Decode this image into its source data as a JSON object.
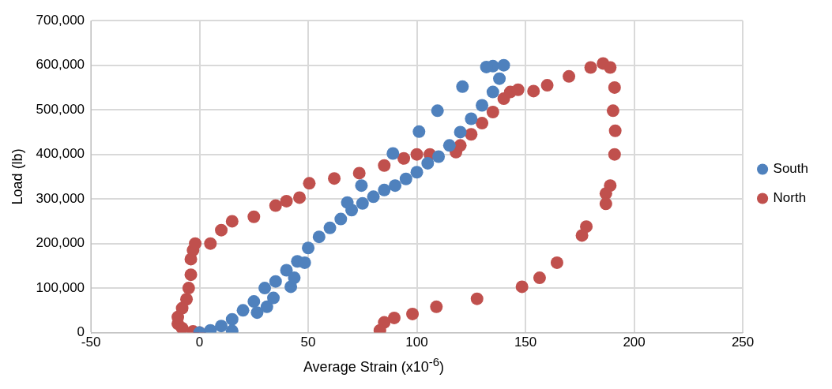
{
  "chart_data": {
    "type": "scatter",
    "xlabel": "Average Strain (x10$^{-6}$)",
    "ylabel": "Load (lb)",
    "xlim": [
      -50,
      250
    ],
    "xticks": [
      -50,
      0,
      50,
      100,
      150,
      200,
      250
    ],
    "ylim": [
      0,
      700000
    ],
    "yticks": [
      {
        "value": 0,
        "label": "0"
      },
      {
        "value": 100000,
        "label": "100,000"
      },
      {
        "value": 200000,
        "label": "200,000"
      },
      {
        "value": 300000,
        "label": "300,000"
      },
      {
        "value": 400000,
        "label": "400,000"
      },
      {
        "value": 500000,
        "label": "500,000"
      },
      {
        "value": 600000,
        "label": "600,000"
      },
      {
        "value": 700000,
        "label": "700,000"
      }
    ],
    "grid": true,
    "legend": "right",
    "marker": "circle",
    "series": [
      {
        "name": "South",
        "color": "#4f81bd",
        "x": [
          0,
          5,
          10,
          15,
          20,
          25,
          30,
          35,
          40,
          45,
          50,
          55,
          60,
          65,
          70,
          75,
          80,
          85,
          90,
          95,
          100,
          105,
          110,
          115,
          120,
          125,
          130,
          135,
          138,
          140,
          135,
          132,
          15,
          26.5,
          31,
          34,
          42,
          43.6,
          48.4,
          68,
          74.5,
          89,
          101,
          109.5,
          121
        ],
        "values": [
          0,
          5000,
          15000,
          30000,
          50000,
          70000,
          100000,
          115000,
          140000,
          160000,
          190000,
          215000,
          235000,
          255000,
          275000,
          290000,
          305000,
          320000,
          330000,
          345000,
          360000,
          380000,
          395000,
          420000,
          450000,
          480000,
          510000,
          540000,
          570000,
          600000,
          598000,
          596000,
          4000,
          45000,
          58000,
          78000,
          103000,
          123000,
          157000,
          292000,
          330000,
          402000,
          451000,
          498000,
          552000
        ]
      },
      {
        "name": "North",
        "color": "#c0504d",
        "x": [
          0,
          -3,
          -8,
          -10,
          -10,
          -8,
          -6,
          -5,
          -4,
          -4,
          -3,
          -2,
          5,
          10,
          15,
          25,
          35,
          40,
          46,
          50.5,
          62,
          73.5,
          85,
          94,
          100,
          106,
          118,
          120,
          125,
          130,
          135,
          140,
          143,
          146.6,
          153.7,
          160,
          170,
          180,
          185.7,
          189,
          191,
          190.3,
          191.3,
          191,
          189,
          187,
          187,
          178,
          176,
          164.5,
          156.5,
          148.4,
          127.7,
          109,
          98,
          89.6,
          85,
          83
        ],
        "values": [
          0,
          3000,
          10000,
          20000,
          35000,
          55000,
          75000,
          100000,
          130000,
          165000,
          185000,
          200000,
          200000,
          230000,
          250000,
          260000,
          285000,
          295000,
          303000,
          335000,
          346000,
          358000,
          375000,
          391000,
          400000,
          400000,
          405000,
          420000,
          445000,
          470000,
          495000,
          525000,
          540000,
          545000,
          542000,
          555000,
          575000,
          595000,
          604000,
          595000,
          550000,
          498000,
          453000,
          400000,
          330000,
          312000,
          289000,
          238000,
          218000,
          157000,
          123000,
          103000,
          76000,
          58000,
          42000,
          33000,
          23000,
          5000
        ]
      }
    ]
  }
}
